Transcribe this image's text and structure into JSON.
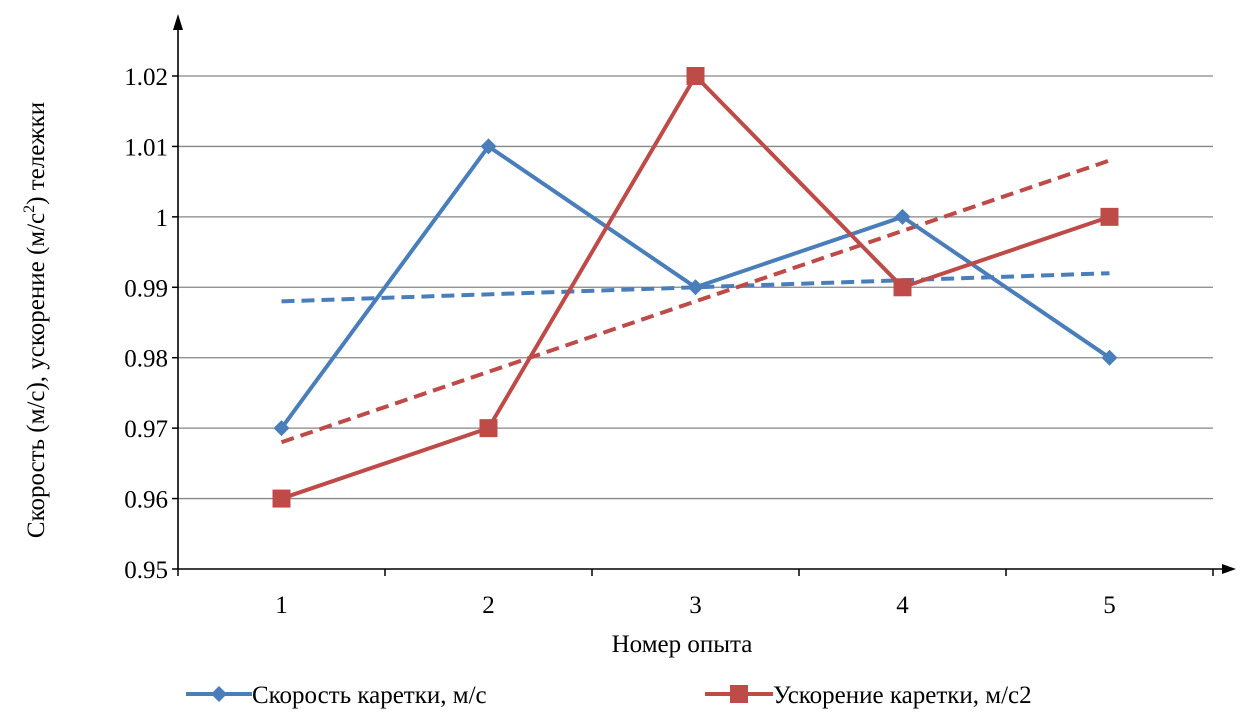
{
  "chart_data": {
    "type": "line",
    "title": "",
    "xlabel": "Номер опыта",
    "ylabel_parts": [
      "Скорость (м/с), ускорение (м/с",
      "2",
      ") тележки"
    ],
    "categories": [
      "1",
      "2",
      "3",
      "4",
      "5"
    ],
    "x": [
      1,
      2,
      3,
      4,
      5
    ],
    "ylim": [
      0.95,
      1.02
    ],
    "yticks": [
      0.95,
      0.96,
      0.97,
      0.98,
      0.99,
      1.0,
      1.01,
      1.02
    ],
    "ytick_labels": [
      "0.95",
      "0.96",
      "0.97",
      "0.98",
      "0.99",
      "1",
      "1.01",
      "1.02"
    ],
    "grid": true,
    "legend_position": "bottom",
    "series": [
      {
        "name": "Скорость каретки, м/с",
        "values": [
          0.97,
          1.01,
          0.99,
          1.0,
          0.98
        ],
        "marker": "diamond",
        "color": "#4a7ebb",
        "trendline": [
          0.988,
          0.992
        ]
      },
      {
        "name": "Ускорение каретки, м/с2",
        "values": [
          0.96,
          0.97,
          1.02,
          0.99,
          1.0
        ],
        "marker": "square",
        "color": "#be4b48",
        "trendline": [
          0.968,
          1.008
        ]
      }
    ]
  }
}
